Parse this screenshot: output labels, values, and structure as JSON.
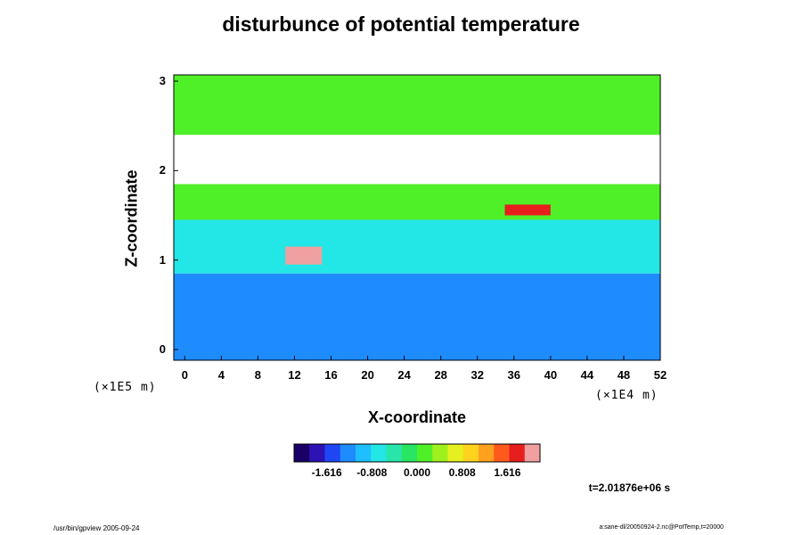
{
  "chart_data": {
    "type": "heatmap",
    "title": "disturbunce of potential temperature",
    "xlabel": "X-coordinate",
    "ylabel": "Z-coordinate",
    "x_unit": "(×1E4 m)",
    "y_unit": "(×1E5 m)",
    "xlim": [
      -1.2,
      52
    ],
    "ylim": [
      -0.12,
      3.07
    ],
    "x_ticks": [
      "0",
      "4",
      "8",
      "12",
      "16",
      "20",
      "24",
      "28",
      "32",
      "36",
      "40",
      "44",
      "48",
      "52"
    ],
    "y_ticks": [
      "0",
      "1",
      "2",
      "3"
    ],
    "colorbar": {
      "ticks": [
        "-1.616",
        "-0.808",
        "0.000",
        "0.808",
        "1.616"
      ],
      "range": [
        -2.2,
        2.2
      ],
      "colors": [
        "#1a0066",
        "#2d12b4",
        "#1e46f5",
        "#1e8cff",
        "#1ebeff",
        "#23e6e6",
        "#28e6aa",
        "#28e664",
        "#50f028",
        "#a0f01e",
        "#e6f01e",
        "#ffd21e",
        "#ffa01e",
        "#ff5a1e",
        "#e61e1e",
        "#f0a0a0"
      ]
    },
    "annotation": "t=2.01876e+06 s",
    "features": [
      {
        "region": "lower layer",
        "x": [
          -1.2,
          52
        ],
        "z": [
          -0.12,
          0.85
        ],
        "value": -1.2
      },
      {
        "region": "middle layer",
        "x": [
          -1.2,
          52
        ],
        "z": [
          0.85,
          1.45
        ],
        "value": -0.7
      },
      {
        "region": "upper layer",
        "x": [
          -1.2,
          52
        ],
        "z": [
          1.45,
          1.85
        ],
        "value": 0.2
      },
      {
        "region": "saturated band",
        "x": [
          -1.2,
          52
        ],
        "z": [
          1.85,
          2.4
        ],
        "value": null
      },
      {
        "region": "top layer",
        "x": [
          -1.2,
          52
        ],
        "z": [
          2.4,
          3.07
        ],
        "value": 0.0
      },
      {
        "region": "warm anomaly",
        "x": [
          11,
          15
        ],
        "z": [
          0.95,
          1.15
        ],
        "value": 2.0
      },
      {
        "region": "warm anomaly",
        "x": [
          35,
          40
        ],
        "z": [
          1.5,
          1.62
        ],
        "value": 1.9
      }
    ]
  },
  "footer": {
    "left": "/usr/bin/gpview 2005-09-24",
    "right": "a:sane-dl/20050924-2.nc@PotTemp,t=20000"
  }
}
